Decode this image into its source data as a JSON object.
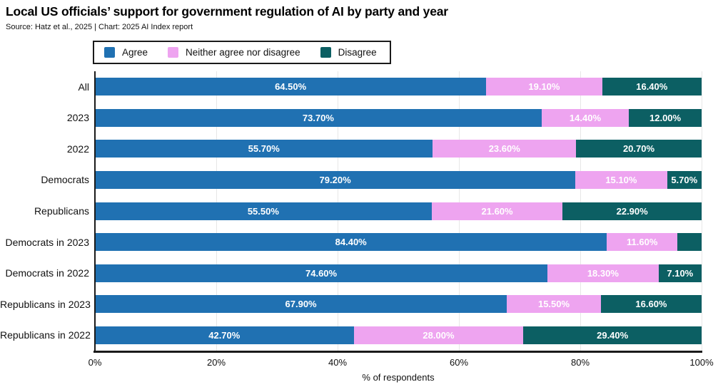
{
  "header": {
    "title": "Local US officials’ support for government regulation of AI by party and year",
    "source": "Source: Hatz et al., 2025 | Chart: 2025 AI Index report"
  },
  "chart_data": {
    "type": "bar",
    "orientation": "horizontal",
    "stacked": true,
    "title": "Local US officials’ support for government regulation of AI by party and year",
    "xlabel": "% of respondents",
    "ylabel": "",
    "xlim": [
      0,
      100
    ],
    "x_ticks": [
      "0%",
      "20%",
      "40%",
      "60%",
      "80%",
      "100%"
    ],
    "grid": true,
    "legend_position": "top",
    "categories": [
      "All",
      "2023",
      "2022",
      "Democrats",
      "Republicans",
      "Democrats in 2023",
      "Democrats in 2022",
      "Republicans in 2023",
      "Republicans in 2022"
    ],
    "series": [
      {
        "name": "Agree",
        "color": "#2071B2",
        "values": [
          64.5,
          73.7,
          55.7,
          79.2,
          55.5,
          84.4,
          74.6,
          67.9,
          42.7
        ],
        "labels": [
          "64.50%",
          "73.70%",
          "55.70%",
          "79.20%",
          "55.50%",
          "84.40%",
          "74.60%",
          "67.90%",
          "42.70%"
        ]
      },
      {
        "name": "Neither agree nor disagree",
        "color": "#EEA4F0",
        "values": [
          19.1,
          14.4,
          23.6,
          15.1,
          21.6,
          11.6,
          18.3,
          15.5,
          28.0
        ],
        "labels": [
          "19.10%",
          "14.40%",
          "23.60%",
          "15.10%",
          "21.60%",
          "11.60%",
          "18.30%",
          "15.50%",
          "28.00%"
        ]
      },
      {
        "name": "Disagree",
        "color": "#0C5F63",
        "values": [
          16.4,
          12.0,
          20.7,
          5.7,
          22.9,
          4.0,
          7.1,
          16.6,
          29.4
        ],
        "labels": [
          "16.40%",
          "12.00%",
          "20.70%",
          "5.70%",
          "22.90%",
          "",
          "7.10%",
          "16.60%",
          "29.40%"
        ]
      }
    ]
  }
}
